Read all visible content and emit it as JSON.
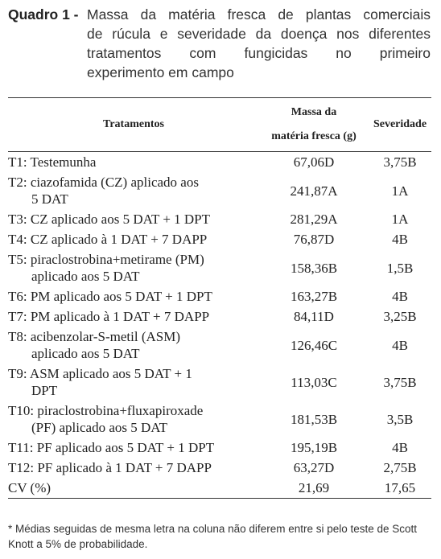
{
  "caption": {
    "label": "Quadro 1 -",
    "lines": [
      "Massa da matéria fresca de plantas comerciais",
      "de rúcula e severidade da doença nos diferentes",
      "tratamentos com fungicidas no primeiro",
      "experimento em campo"
    ]
  },
  "table": {
    "header": {
      "treatment": "Tratamentos",
      "mass": [
        "Massa da",
        "matéria fresca (g)"
      ],
      "severity": "Severidade"
    },
    "rows": [
      {
        "treatment": [
          "T1: Testemunha"
        ],
        "mass": "67,06D",
        "severity": "3,75B"
      },
      {
        "treatment": [
          "T2: ciazofamida (CZ) aplicado aos",
          "5 DAT"
        ],
        "mass": "241,87A",
        "severity": "1A"
      },
      {
        "treatment": [
          "T3: CZ aplicado aos 5 DAT + 1 DPT"
        ],
        "mass": "281,29A",
        "severity": "1A"
      },
      {
        "treatment": [
          "T4: CZ aplicado à 1 DAT + 7 DAPP"
        ],
        "mass": "76,87D",
        "severity": "4B"
      },
      {
        "treatment": [
          "T5: piraclostrobina+metirame (PM)",
          "aplicado aos 5 DAT"
        ],
        "mass": "158,36B",
        "severity": "1,5B"
      },
      {
        "treatment": [
          "T6: PM aplicado aos 5 DAT + 1 DPT"
        ],
        "mass": "163,27B",
        "severity": "4B"
      },
      {
        "treatment": [
          "T7: PM aplicado à 1 DAT + 7 DAPP"
        ],
        "mass": "84,11D",
        "severity": "3,25B"
      },
      {
        "treatment": [
          "T8: acibenzolar-S-metil (ASM)",
          "aplicado aos 5 DAT"
        ],
        "mass": "126,46C",
        "severity": "4B"
      },
      {
        "treatment": [
          "T9: ASM aplicado aos 5 DAT + 1",
          "DPT"
        ],
        "mass": "113,03C",
        "severity": "3,75B"
      },
      {
        "treatment": [
          "T10: piraclostrobina+fluxapiroxade",
          "(PF) aplicado aos 5 DAT"
        ],
        "mass": "181,53B",
        "severity": "3,5B"
      },
      {
        "treatment": [
          "T11: PF aplicado aos 5 DAT + 1 DPT"
        ],
        "mass": "195,19B",
        "severity": "4B"
      },
      {
        "treatment": [
          "T12: PF aplicado à 1 DAT + 7 DAPP"
        ],
        "mass": "63,27D",
        "severity": "2,75B"
      },
      {
        "treatment": [
          "CV (%)"
        ],
        "mass": "21,69",
        "severity": "17,65"
      }
    ]
  },
  "footnote": "* Médias seguidas de mesma letra na coluna não diferem entre si pelo teste de Scott Knott a 5% de probabilidade."
}
